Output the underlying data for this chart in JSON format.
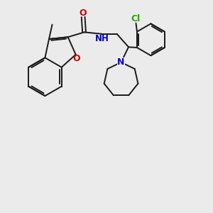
{
  "background_color": "#ebebeb",
  "bond_color": "#1a1a1a",
  "oxygen_color": "#cc0000",
  "nitrogen_color": "#0000cc",
  "chlorine_color": "#22aa00",
  "figsize": [
    3.0,
    3.0
  ],
  "dpi": 100,
  "xlim": [
    0,
    10
  ],
  "ylim": [
    0,
    10
  ]
}
